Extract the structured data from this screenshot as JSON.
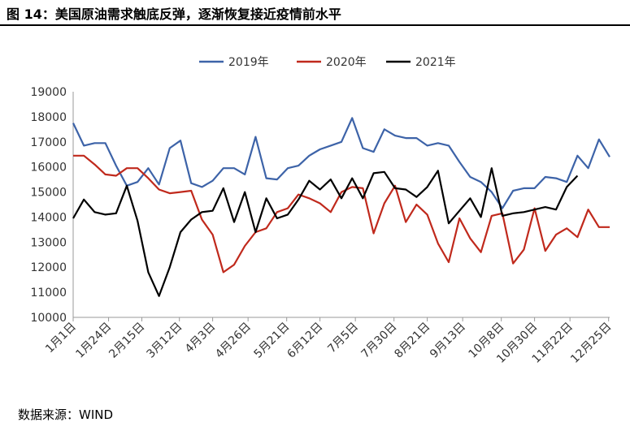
{
  "figure": {
    "title": "图 14：美国原油需求触底反弹，逐渐恢复接近疫情前水平",
    "source": "数据来源：WIND"
  },
  "chart_data": {
    "type": "line",
    "ylim": [
      10000,
      19000
    ],
    "yticks": [
      10000,
      11000,
      12000,
      13000,
      14000,
      15000,
      16000,
      17000,
      18000,
      19000
    ],
    "xtick_labels": [
      "1月1日",
      "1月24日",
      "2月15日",
      "3月12日",
      "4月3日",
      "4月26日",
      "5月21日",
      "6月12日",
      "7月5日",
      "7月30日",
      "8月21日",
      "9月13日",
      "10月8日",
      "10月30日",
      "11月22日",
      "12月25日"
    ],
    "xtick_positions": [
      0,
      3.3,
      6.4,
      9.9,
      13,
      16.3,
      19.9,
      23,
      26.3,
      29.9,
      33,
      36.3,
      39.9,
      43,
      46.3,
      49.9
    ],
    "n_points": 51,
    "grid": false,
    "legend": "top-center",
    "series": [
      {
        "name": "2019年",
        "color": "#3d63a8",
        "values": [
          17750,
          16850,
          16950,
          16950,
          16050,
          15250,
          15400,
          15950,
          15300,
          16750,
          17050,
          15350,
          15200,
          15450,
          15950,
          15950,
          15700,
          17200,
          15550,
          15500,
          15950,
          16050,
          16450,
          16700,
          16850,
          17000,
          17950,
          16750,
          16600,
          17500,
          17250,
          17150,
          17150,
          16850,
          16950,
          16850,
          16200,
          15600,
          15400,
          15000,
          14350,
          15050,
          15150,
          15150,
          15600,
          15550,
          15400,
          16450,
          15950,
          17100,
          16400
        ]
      },
      {
        "name": "2020年",
        "color": "#c0291c",
        "values": [
          16450,
          16450,
          16100,
          15700,
          15650,
          15950,
          15950,
          15550,
          15100,
          14950,
          15000,
          15050,
          13900,
          13300,
          11800,
          12100,
          12850,
          13400,
          13550,
          14200,
          14350,
          14900,
          14750,
          14550,
          14200,
          15000,
          15200,
          15150,
          13350,
          14550,
          15250,
          13800,
          14500,
          14100,
          12950,
          12200,
          13950,
          13150,
          12600,
          14050,
          14150,
          12150,
          12700,
          14350,
          12650,
          13300,
          13550,
          13200,
          14300,
          13600,
          13600
        ]
      },
      {
        "name": "2021年",
        "color": "#000000",
        "values": [
          13950,
          14700,
          14200,
          14100,
          14150,
          15250,
          13850,
          11800,
          10850,
          12000,
          13400,
          13900,
          14200,
          14250,
          15150,
          13800,
          15000,
          13400,
          14750,
          13950,
          14100,
          14700,
          15450,
          15100,
          15500,
          14750,
          15550,
          14750,
          15750,
          15800,
          15150,
          15100,
          14800,
          15200,
          15850,
          13750,
          14250,
          14750,
          14000,
          15950,
          14050,
          14150,
          14200,
          14300,
          14400,
          14300,
          15200,
          15650
        ]
      }
    ]
  }
}
